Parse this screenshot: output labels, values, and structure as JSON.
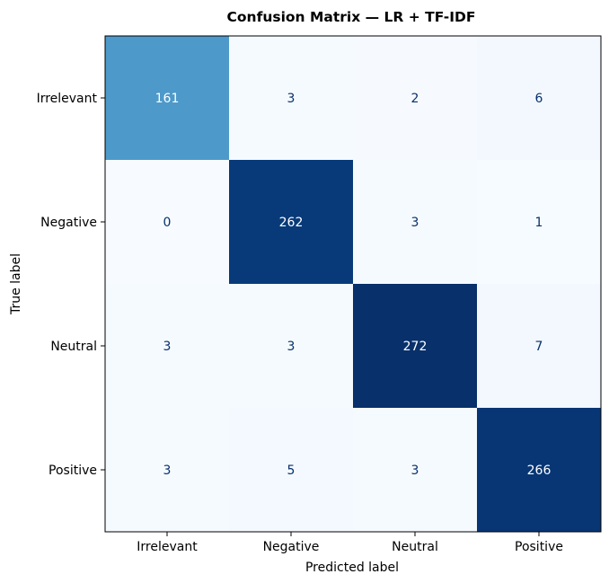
{
  "chart_data": {
    "type": "heatmap",
    "title": "Confusion Matrix — LR + TF-IDF",
    "xlabel": "Predicted label",
    "ylabel": "True label",
    "x_categories": [
      "Irrelevant",
      "Negative",
      "Neutral",
      "Positive"
    ],
    "y_categories": [
      "Irrelevant",
      "Negative",
      "Neutral",
      "Positive"
    ],
    "values": [
      [
        161,
        3,
        2,
        6
      ],
      [
        0,
        262,
        3,
        1
      ],
      [
        3,
        3,
        272,
        7
      ],
      [
        3,
        5,
        3,
        266
      ]
    ],
    "colormap": "Blues",
    "colorbar": false,
    "grid": false
  }
}
